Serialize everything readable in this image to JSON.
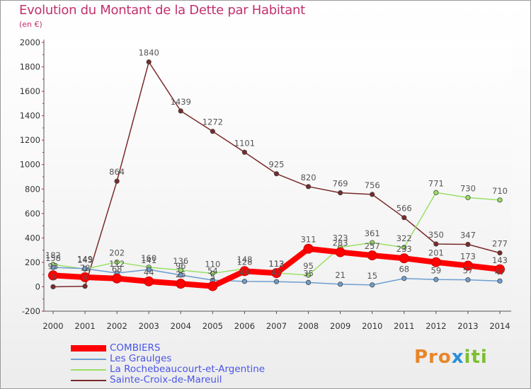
{
  "chart_data": {
    "type": "line",
    "title": "Evolution du Montant de la Dette par Habitant",
    "subtitle": "(en €)",
    "xlabel": "",
    "ylabel": "",
    "ylim": [
      -200,
      2000
    ],
    "yticks": [
      -200,
      0,
      200,
      400,
      600,
      800,
      1000,
      1200,
      1400,
      1600,
      1800,
      2000
    ],
    "grid": false,
    "legend_position": "bottom-left",
    "categories": [
      "2000",
      "2001",
      "2002",
      "2003",
      "2004",
      "2005",
      "2006",
      "2007",
      "2008",
      "2009",
      "2010",
      "2011",
      "2012",
      "2013",
      "2014"
    ],
    "series": [
      {
        "name": "COMBIERS",
        "color": "#ff0000",
        "values": [
          93,
          78,
          68,
          44,
          25,
          5,
          128,
          112,
          311,
          283,
          257,
          233,
          201,
          173,
          143
        ]
      },
      {
        "name": "Les Graulges",
        "color": "#6d9ed0",
        "values": [
          158,
          149,
          112,
          141,
          96,
          54,
          44,
          42,
          35,
          21,
          15,
          68,
          59,
          57,
          47
        ]
      },
      {
        "name": "La Rochebeaucourt-et-Argentine",
        "color": "#99e066",
        "values": [
          182,
          145,
          202,
          160,
          136,
          110,
          148,
          113,
          95,
          323,
          361,
          322,
          771,
          730,
          710
        ]
      },
      {
        "name": "Sainte-Croix-de-Mareuil",
        "color": "#7a2a2a",
        "values": [
          0,
          4,
          864,
          1840,
          1439,
          1272,
          1101,
          925,
          820,
          769,
          756,
          566,
          350,
          347,
          277
        ]
      }
    ]
  },
  "logo": {
    "part1": "Pro",
    "part2": "x",
    "part3": "iti"
  }
}
